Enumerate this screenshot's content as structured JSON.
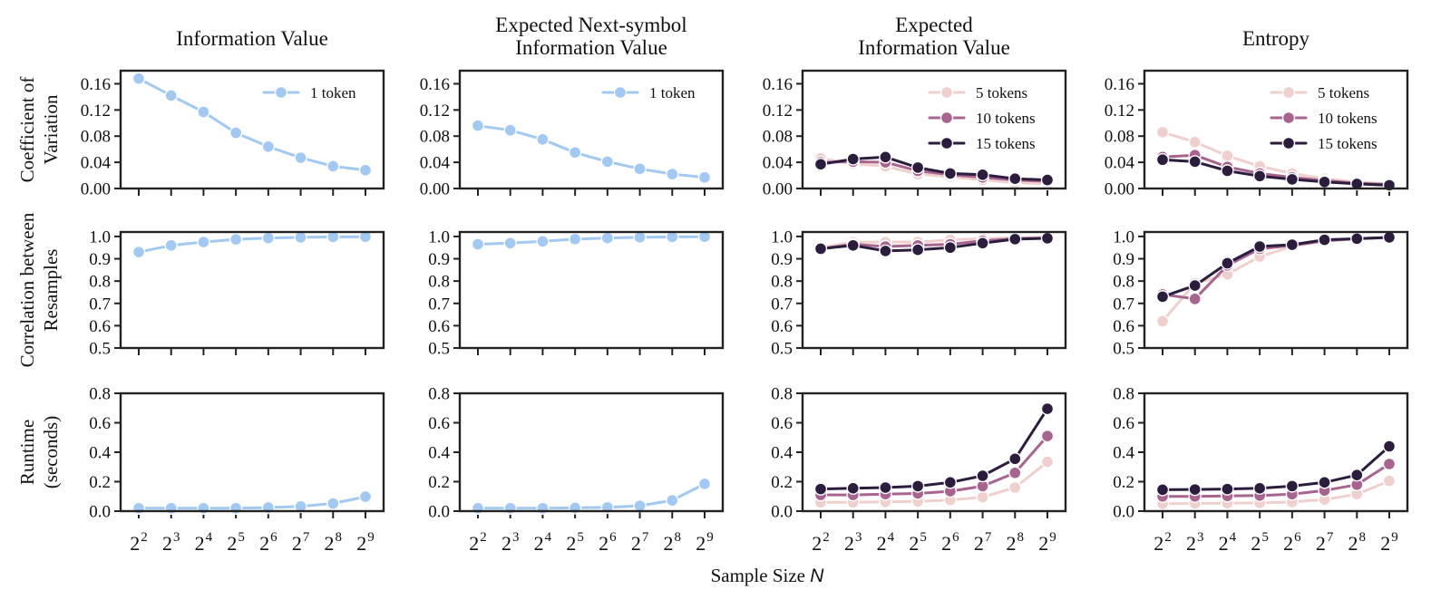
{
  "chart_data": {
    "type": "line",
    "figure_xlabel": "Sample Size",
    "figure_xlabel_symbol": "N",
    "x_values": [
      2,
      3,
      4,
      5,
      6,
      7,
      8,
      9
    ],
    "x_tick_base": "2",
    "x_tick_exponents": [
      "2",
      "3",
      "4",
      "5",
      "6",
      "7",
      "8",
      "9"
    ],
    "columns": [
      "Information Value",
      "Expected Next-symbol Information Value",
      "Expected Information Value",
      "Entropy"
    ],
    "column_title_lines": [
      [
        "Information Value"
      ],
      [
        "Expected Next-symbol",
        "Information Value"
      ],
      [
        "Expected",
        "Information Value"
      ],
      [
        "Entropy"
      ]
    ],
    "rows": [
      {
        "ylabel": "Coefficient of Variation",
        "ylabel_lines": [
          "Coefficient of",
          "Variation"
        ],
        "ylim": [
          0,
          0.18
        ],
        "yticks": [
          "0.00",
          "0.04",
          "0.08",
          "0.12",
          "0.16"
        ]
      },
      {
        "ylabel": "Correlation between Resamples",
        "ylabel_lines": [
          "Correlation between",
          "Resamples"
        ],
        "ylim": [
          0.5,
          1.02
        ],
        "yticks": [
          "0.5",
          "0.6",
          "0.7",
          "0.8",
          "0.9",
          "1.0"
        ]
      },
      {
        "ylabel": "Runtime (seconds)",
        "ylabel_lines": [
          "Runtime",
          "(seconds)"
        ],
        "ylim": [
          0,
          0.8
        ],
        "yticks": [
          "0.0",
          "0.2",
          "0.4",
          "0.6",
          "0.8"
        ]
      }
    ],
    "colors": {
      "1 token": "#a1c9f4",
      "5 tokens": "#efd0cd",
      "10 tokens": "#a8638f",
      "15 tokens": "#2c1d3f"
    },
    "panels": [
      {
        "row": 0,
        "col": 0,
        "legend": [
          "1 token"
        ],
        "series": [
          {
            "name": "1 token",
            "values": [
              0.168,
              0.142,
              0.117,
              0.085,
              0.064,
              0.047,
              0.034,
              0.028
            ]
          }
        ]
      },
      {
        "row": 0,
        "col": 1,
        "legend": [
          "1 token"
        ],
        "series": [
          {
            "name": "1 token",
            "values": [
              0.096,
              0.089,
              0.075,
              0.055,
              0.041,
              0.03,
              0.022,
              0.017
            ]
          }
        ]
      },
      {
        "row": 0,
        "col": 2,
        "legend": [
          "5 tokens",
          "10 tokens",
          "15 tokens"
        ],
        "series": [
          {
            "name": "5 tokens",
            "values": [
              0.046,
              0.038,
              0.034,
              0.022,
              0.018,
              0.013,
              0.009,
              0.007
            ]
          },
          {
            "name": "10 tokens",
            "values": [
              0.04,
              0.041,
              0.04,
              0.027,
              0.021,
              0.017,
              0.013,
              0.011
            ]
          },
          {
            "name": "15 tokens",
            "values": [
              0.037,
              0.045,
              0.048,
              0.032,
              0.023,
              0.021,
              0.015,
              0.013
            ]
          }
        ]
      },
      {
        "row": 0,
        "col": 3,
        "legend": [
          "5 tokens",
          "10 tokens",
          "15 tokens"
        ],
        "series": [
          {
            "name": "5 tokens",
            "values": [
              0.086,
              0.071,
              0.05,
              0.034,
              0.023,
              0.015,
              0.01,
              0.007
            ]
          },
          {
            "name": "10 tokens",
            "values": [
              0.048,
              0.051,
              0.033,
              0.023,
              0.017,
              0.012,
              0.008,
              0.006
            ]
          },
          {
            "name": "15 tokens",
            "values": [
              0.044,
              0.041,
              0.027,
              0.019,
              0.014,
              0.01,
              0.007,
              0.005
            ]
          }
        ]
      },
      {
        "row": 1,
        "col": 0,
        "legend": [],
        "series": [
          {
            "name": "1 token",
            "values": [
              0.93,
              0.96,
              0.975,
              0.987,
              0.993,
              0.996,
              0.998,
              0.999
            ]
          }
        ]
      },
      {
        "row": 1,
        "col": 1,
        "legend": [],
        "series": [
          {
            "name": "1 token",
            "values": [
              0.965,
              0.97,
              0.978,
              0.988,
              0.993,
              0.996,
              0.998,
              0.999
            ]
          }
        ]
      },
      {
        "row": 1,
        "col": 2,
        "legend": [],
        "series": [
          {
            "name": "5 tokens",
            "values": [
              0.95,
              0.975,
              0.975,
              0.975,
              0.985,
              0.99,
              0.995,
              0.997
            ]
          },
          {
            "name": "10 tokens",
            "values": [
              0.945,
              0.965,
              0.955,
              0.96,
              0.965,
              0.98,
              0.99,
              0.993
            ]
          },
          {
            "name": "15 tokens",
            "values": [
              0.945,
              0.96,
              0.935,
              0.94,
              0.95,
              0.97,
              0.988,
              0.992
            ]
          }
        ]
      },
      {
        "row": 1,
        "col": 3,
        "legend": [],
        "series": [
          {
            "name": "5 tokens",
            "values": [
              0.62,
              0.79,
              0.83,
              0.91,
              0.955,
              0.98,
              0.99,
              0.995
            ]
          },
          {
            "name": "10 tokens",
            "values": [
              0.74,
              0.72,
              0.87,
              0.945,
              0.96,
              0.98,
              0.99,
              0.995
            ]
          },
          {
            "name": "15 tokens",
            "values": [
              0.73,
              0.78,
              0.88,
              0.955,
              0.963,
              0.985,
              0.99,
              0.996
            ]
          }
        ]
      },
      {
        "row": 2,
        "col": 0,
        "legend": [],
        "series": [
          {
            "name": "1 token",
            "values": [
              0.02,
              0.02,
              0.02,
              0.02,
              0.024,
              0.032,
              0.052,
              0.098
            ]
          }
        ]
      },
      {
        "row": 2,
        "col": 1,
        "legend": [],
        "series": [
          {
            "name": "1 token",
            "values": [
              0.02,
              0.02,
              0.02,
              0.022,
              0.025,
              0.036,
              0.073,
              0.185
            ]
          }
        ]
      },
      {
        "row": 2,
        "col": 2,
        "legend": [],
        "series": [
          {
            "name": "5 tokens",
            "values": [
              0.06,
              0.06,
              0.063,
              0.066,
              0.075,
              0.095,
              0.16,
              0.335
            ]
          },
          {
            "name": "10 tokens",
            "values": [
              0.11,
              0.11,
              0.115,
              0.12,
              0.135,
              0.17,
              0.26,
              0.51
            ]
          },
          {
            "name": "15 tokens",
            "values": [
              0.15,
              0.155,
              0.16,
              0.17,
              0.195,
              0.24,
              0.355,
              0.695
            ]
          }
        ]
      },
      {
        "row": 2,
        "col": 3,
        "legend": [],
        "series": [
          {
            "name": "5 tokens",
            "values": [
              0.05,
              0.052,
              0.054,
              0.056,
              0.062,
              0.078,
              0.115,
              0.205
            ]
          },
          {
            "name": "10 tokens",
            "values": [
              0.1,
              0.1,
              0.103,
              0.106,
              0.115,
              0.14,
              0.18,
              0.32
            ]
          },
          {
            "name": "15 tokens",
            "values": [
              0.145,
              0.147,
              0.15,
              0.155,
              0.17,
              0.195,
              0.245,
              0.44
            ]
          }
        ]
      }
    ]
  }
}
